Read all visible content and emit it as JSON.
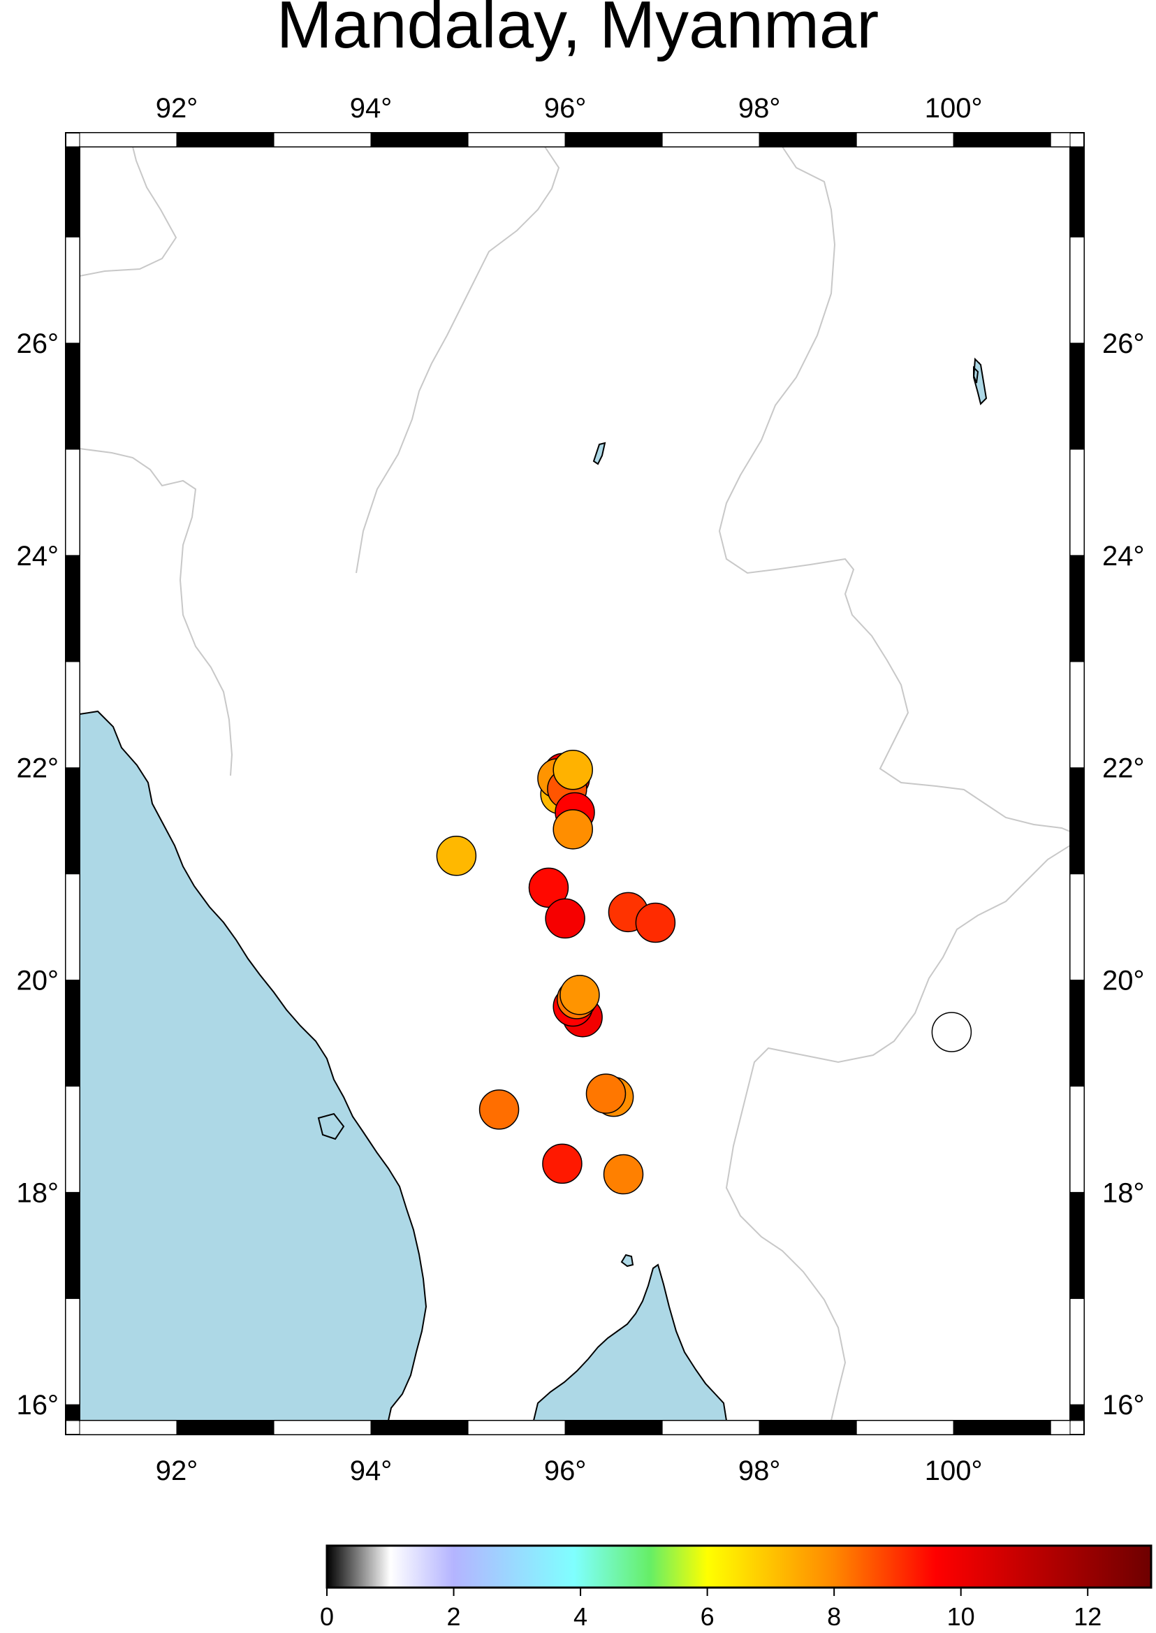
{
  "map": {
    "title": "Mandalay, Myanmar",
    "lon_range": [
      91.0,
      101.2
    ],
    "lat_range": [
      15.85,
      27.85
    ],
    "x_ticks": [
      {
        "value": 92,
        "label": "92°"
      },
      {
        "value": 94,
        "label": "94°"
      },
      {
        "value": 96,
        "label": "96°"
      },
      {
        "value": 98,
        "label": "98°"
      },
      {
        "value": 100,
        "label": "100°"
      }
    ],
    "y_ticks": [
      {
        "value": 16,
        "label": "16°"
      },
      {
        "value": 18,
        "label": "18°"
      },
      {
        "value": 20,
        "label": "20°"
      },
      {
        "value": 22,
        "label": "22°"
      },
      {
        "value": 24,
        "label": "24°"
      },
      {
        "value": 26,
        "label": "26°"
      }
    ],
    "colors": {
      "water": "#add8e6",
      "land": "#ffffff",
      "border": "#c8c8c8",
      "coast": "#000000"
    }
  },
  "chart_data": {
    "type": "scatter",
    "x_axis": "longitude",
    "y_axis": "latitude",
    "color_variable_range": [
      0,
      13
    ],
    "points": [
      {
        "lon": 95.98,
        "lat": 21.95,
        "v": 9.9
      },
      {
        "lon": 96.05,
        "lat": 21.9,
        "v": 10.2
      },
      {
        "lon": 95.95,
        "lat": 21.75,
        "v": 7.2
      },
      {
        "lon": 95.92,
        "lat": 21.9,
        "v": 7.8
      },
      {
        "lon": 96.02,
        "lat": 21.8,
        "v": 8.6
      },
      {
        "lon": 96.08,
        "lat": 21.98,
        "v": 7.3
      },
      {
        "lon": 96.1,
        "lat": 21.58,
        "v": 9.6
      },
      {
        "lon": 96.08,
        "lat": 21.42,
        "v": 7.9
      },
      {
        "lon": 94.88,
        "lat": 21.17,
        "v": 7.2
      },
      {
        "lon": 95.83,
        "lat": 20.87,
        "v": 9.5
      },
      {
        "lon": 96.0,
        "lat": 20.58,
        "v": 9.8
      },
      {
        "lon": 96.65,
        "lat": 20.64,
        "v": 9.0
      },
      {
        "lon": 96.93,
        "lat": 20.54,
        "v": 9.1
      },
      {
        "lon": 96.18,
        "lat": 19.65,
        "v": 9.9
      },
      {
        "lon": 96.08,
        "lat": 19.75,
        "v": 9.6
      },
      {
        "lon": 96.12,
        "lat": 19.82,
        "v": 8.2
      },
      {
        "lon": 96.15,
        "lat": 19.86,
        "v": 7.8
      },
      {
        "lon": 95.32,
        "lat": 18.78,
        "v": 8.3
      },
      {
        "lon": 96.5,
        "lat": 18.9,
        "v": 7.9
      },
      {
        "lon": 96.42,
        "lat": 18.93,
        "v": 8.2
      },
      {
        "lon": 95.97,
        "lat": 18.27,
        "v": 9.3
      },
      {
        "lon": 96.6,
        "lat": 18.17,
        "v": 8.1
      },
      {
        "lon": 99.98,
        "lat": 19.51,
        "v": 1.0
      }
    ],
    "colorbar": {
      "ticks": [
        {
          "value": 0,
          "label": "0"
        },
        {
          "value": 2,
          "label": "2"
        },
        {
          "value": 4,
          "label": "4"
        },
        {
          "value": 6,
          "label": "6"
        },
        {
          "value": 8,
          "label": "8"
        },
        {
          "value": 10,
          "label": "10"
        },
        {
          "value": 12,
          "label": "12"
        }
      ],
      "stops": [
        {
          "v": 0,
          "color": "#000000"
        },
        {
          "v": 1,
          "color": "#ffffff"
        },
        {
          "v": 2,
          "color": "#b4b4ff"
        },
        {
          "v": 3.9,
          "color": "#7fffff"
        },
        {
          "v": 5.1,
          "color": "#66ee66"
        },
        {
          "v": 6.0,
          "color": "#ffff00"
        },
        {
          "v": 8.0,
          "color": "#ff8800"
        },
        {
          "v": 9.6,
          "color": "#ff0000"
        },
        {
          "v": 13,
          "color": "#6e0000"
        }
      ]
    }
  }
}
